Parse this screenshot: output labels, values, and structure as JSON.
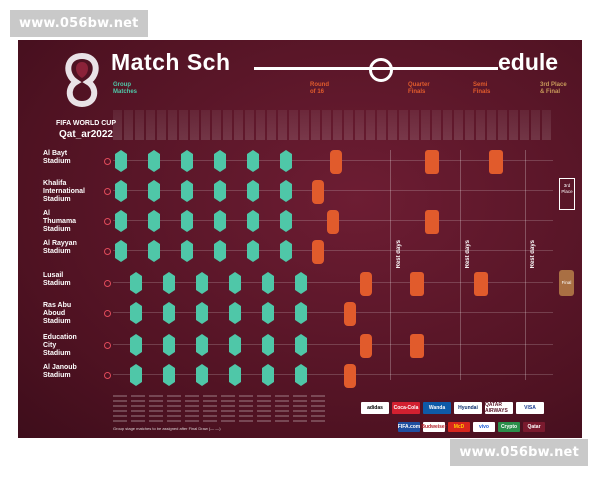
{
  "watermark": "www.056bw.net",
  "brand": {
    "line1": "FIFA WORLD CUP",
    "line2": "Qat_ar2022"
  },
  "title": {
    "left": "Match Sch",
    "right": "edule"
  },
  "stages": [
    {
      "label": "Group\nMatches",
      "color": "#4fc7a8"
    },
    {
      "label": "Round\nof 16",
      "color": "#e15b2c"
    },
    {
      "label": "Quarter\nFinals",
      "color": "#e15b2c"
    },
    {
      "label": "Semi\nFinals",
      "color": "#e15b2c"
    },
    {
      "label": "3rd Place\n& Final",
      "color": "#c89a5a"
    }
  ],
  "stadiums": [
    "Al Bayt\nStadium",
    "Khalifa\nInternational\nStadium",
    "Al\nThumama\nStadium",
    "Al Rayyan\nStadium",
    "Lusail\nStadium",
    "Ras Abu\nAboud\nStadium",
    "Education\nCity\nStadium",
    "Al Janoub\nStadium"
  ],
  "rest_label": "Rest days",
  "third_place_label": "3rd\nPlace",
  "final_label": "Final",
  "note": "Group stage matches to be assigned after Final Draw (— —)",
  "sponsors": [
    "adidas",
    "Coca-Cola",
    "Wanda",
    "Hyundai",
    "QATAR AIRWAYS",
    "VISA"
  ],
  "sponsors2": [
    "FIFA.com",
    "Budweiser",
    "McD",
    "vivo",
    "Crypto",
    "Qatar"
  ],
  "colors": {
    "background": "#5a1628",
    "group": "#4fc7a8",
    "knockout": "#e15b2c",
    "final": "#a96f43"
  }
}
